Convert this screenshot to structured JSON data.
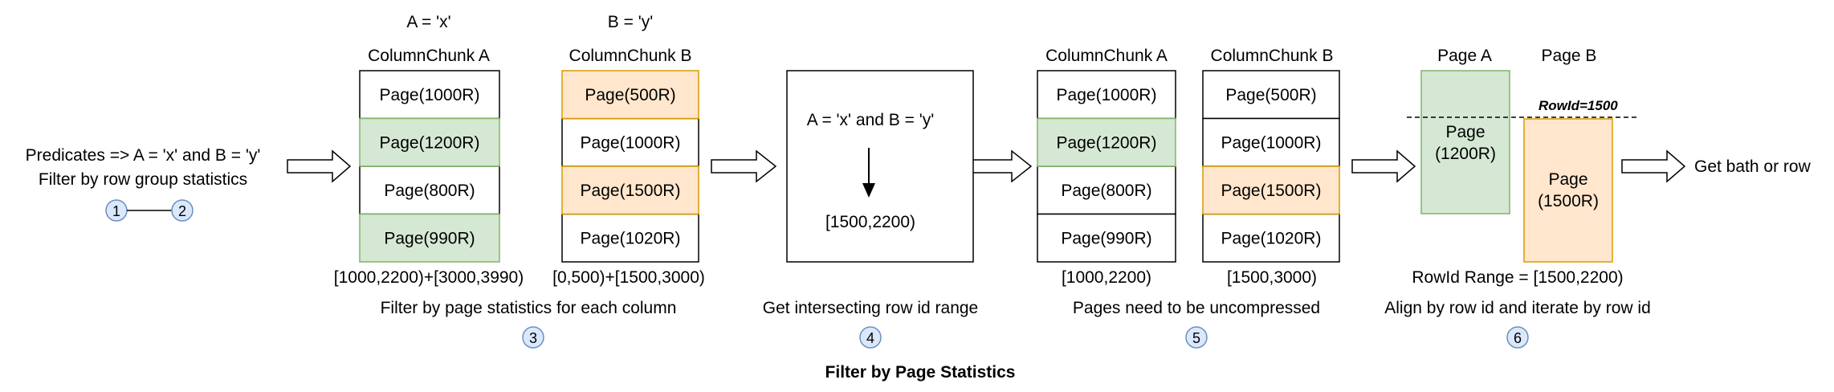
{
  "colors": {
    "green_fill": "#d5e8d4",
    "green_stroke": "#82b366",
    "orange_fill": "#ffe6cc",
    "orange_stroke": "#d79b00",
    "badge_fill": "#dae8fc",
    "badge_stroke": "#6c8ebf",
    "outline": "#000000"
  },
  "stage1": {
    "line1": "Predicates => A = 'x' and B = 'y'",
    "line2": "Filter by row group statistics",
    "badge_a": "1",
    "badge_b": "2"
  },
  "stage3": {
    "pred_a": "A = 'x'",
    "pred_b": "B = 'y'",
    "chunk_a_title": "ColumnChunk A",
    "chunk_b_title": "ColumnChunk B",
    "chunk_a_pages": [
      {
        "label": "Page(1000R)",
        "state": "plain"
      },
      {
        "label": "Page(1200R)",
        "state": "green"
      },
      {
        "label": "Page(800R)",
        "state": "plain"
      },
      {
        "label": "Page(990R)",
        "state": "green"
      }
    ],
    "chunk_b_pages": [
      {
        "label": "Page(500R)",
        "state": "orange"
      },
      {
        "label": "Page(1000R)",
        "state": "plain"
      },
      {
        "label": "Page(1500R)",
        "state": "orange"
      },
      {
        "label": "Page(1020R)",
        "state": "plain"
      }
    ],
    "range_a": "[1000,2200)+[3000,3990)",
    "range_b": "[0,500)+[1500,3000)",
    "caption": "Filter by page statistics for each column",
    "badge": "3"
  },
  "stage4": {
    "predicate": "A = 'x' and B = 'y'",
    "result": "[1500,2200)",
    "caption": "Get intersecting row id range",
    "badge": "4"
  },
  "stage5": {
    "chunk_a_title": "ColumnChunk A",
    "chunk_b_title": "ColumnChunk B",
    "chunk_a_pages": [
      {
        "label": "Page(1000R)",
        "state": "plain"
      },
      {
        "label": "Page(1200R)",
        "state": "green"
      },
      {
        "label": "Page(800R)",
        "state": "plain"
      },
      {
        "label": "Page(990R)",
        "state": "plain"
      }
    ],
    "chunk_b_pages": [
      {
        "label": "Page(500R)",
        "state": "plain"
      },
      {
        "label": "Page(1000R)",
        "state": "plain"
      },
      {
        "label": "Page(1500R)",
        "state": "orange"
      },
      {
        "label": "Page(1020R)",
        "state": "plain"
      }
    ],
    "range_a": "[1000,2200)",
    "range_b": "[1500,3000)",
    "caption": "Pages need to be uncompressed",
    "badge": "5"
  },
  "stage6": {
    "page_a_title": "Page A",
    "page_b_title": "Page B",
    "page_a_line1": "Page",
    "page_a_line2": "(1200R)",
    "page_b_line1": "Page",
    "page_b_line2": "(1500R)",
    "rowid_marker": "RowId=1500",
    "range_label": "RowId Range = [1500,2200)",
    "caption": "Align by row id and iterate by row id",
    "badge": "6"
  },
  "output_label": "Get bath or row",
  "footer_title": "Filter by Page Statistics"
}
